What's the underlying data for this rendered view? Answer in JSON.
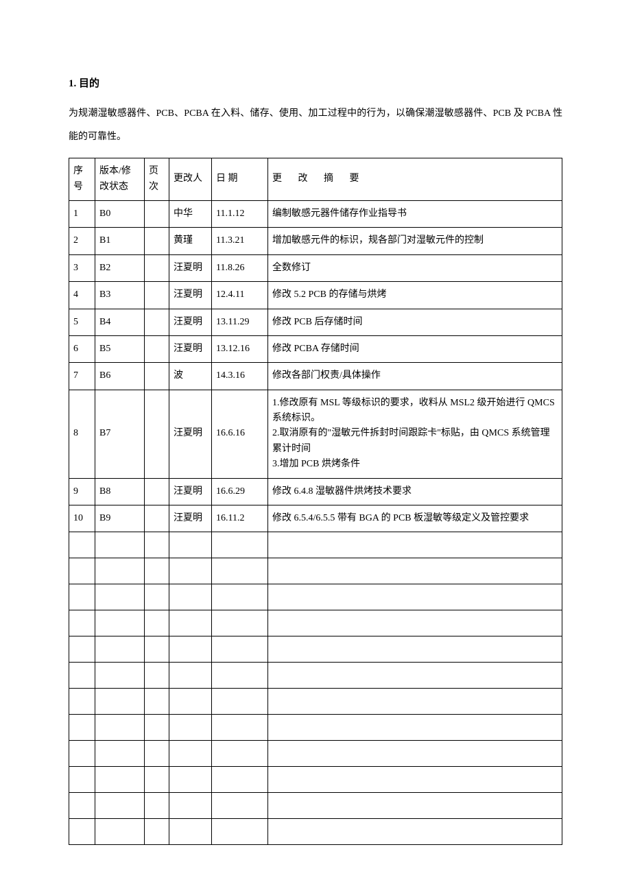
{
  "heading": {
    "number": "1.",
    "title": "目的"
  },
  "intro": "为规潮湿敏感器件、PCB、PCBA 在入料、储存、使用、加工过程中的行为，以确保潮湿敏感器件、PCB 及 PCBA 性能的可靠性。",
  "table": {
    "columns": {
      "seq": "序号",
      "version": "版本/修改状态",
      "page": "页次",
      "author": "更改人",
      "date": "日 期",
      "summary": "更 改 摘 要"
    },
    "rows": [
      {
        "seq": "1",
        "version": "B0",
        "page": "",
        "author": "中华",
        "date": "11.1.12",
        "summary": "编制敏感元器件储存作业指导书"
      },
      {
        "seq": "2",
        "version": "B1",
        "page": "",
        "author": "黄瑾",
        "date": "11.3.21",
        "summary": "增加敏感元件的标识，规各部门对湿敏元件的控制"
      },
      {
        "seq": "3",
        "version": "B2",
        "page": "",
        "author": "汪夏明",
        "date": "11.8.26",
        "summary": "全数修订"
      },
      {
        "seq": "4",
        "version": "B3",
        "page": "",
        "author": "汪夏明",
        "date": "12.4.11",
        "summary": "修改 5.2 PCB 的存储与烘烤"
      },
      {
        "seq": "5",
        "version": "B4",
        "page": "",
        "author": "汪夏明",
        "date": "13.11.29",
        "summary": "修改 PCB 后存储时间"
      },
      {
        "seq": "6",
        "version": "B5",
        "page": "",
        "author": "汪夏明",
        "date": "13.12.16",
        "summary": "修改 PCBA 存储时间"
      },
      {
        "seq": "7",
        "version": "B6",
        "page": "",
        "author": "波",
        "date": "14.3.16",
        "summary": "修改各部门权责/具体操作"
      },
      {
        "seq": "8",
        "version": "B7",
        "page": "",
        "author": "汪夏明",
        "date": "16.6.16",
        "summary": "1.修改原有 MSL 等级标识的要求，收料从 MSL2 级开始进行 QMCS 系统标识。\n2.取消原有的\"湿敏元件拆封时间跟踪卡\"标贴，由 QMCS 系统管理累计时间\n3.增加 PCB 烘烤条件",
        "multiline": true
      },
      {
        "seq": "9",
        "version": "B8",
        "page": "",
        "author": "汪夏明",
        "date": "16.6.29",
        "summary": "修改 6.4.8 湿敏器件烘烤技术要求"
      },
      {
        "seq": "10",
        "version": "B9",
        "page": "",
        "author": "汪夏明",
        "date": "16.11.2",
        "summary": "修改 6.5.4/6.5.5 带有 BGA 的 PCB 板湿敏等级定义及管控要求",
        "multiline": true
      }
    ],
    "empty_row_count": 12
  },
  "style": {
    "background_color": "#ffffff",
    "text_color": "#000000",
    "border_color": "#000000",
    "font_size_body": 14,
    "font_size_heading": 15
  }
}
